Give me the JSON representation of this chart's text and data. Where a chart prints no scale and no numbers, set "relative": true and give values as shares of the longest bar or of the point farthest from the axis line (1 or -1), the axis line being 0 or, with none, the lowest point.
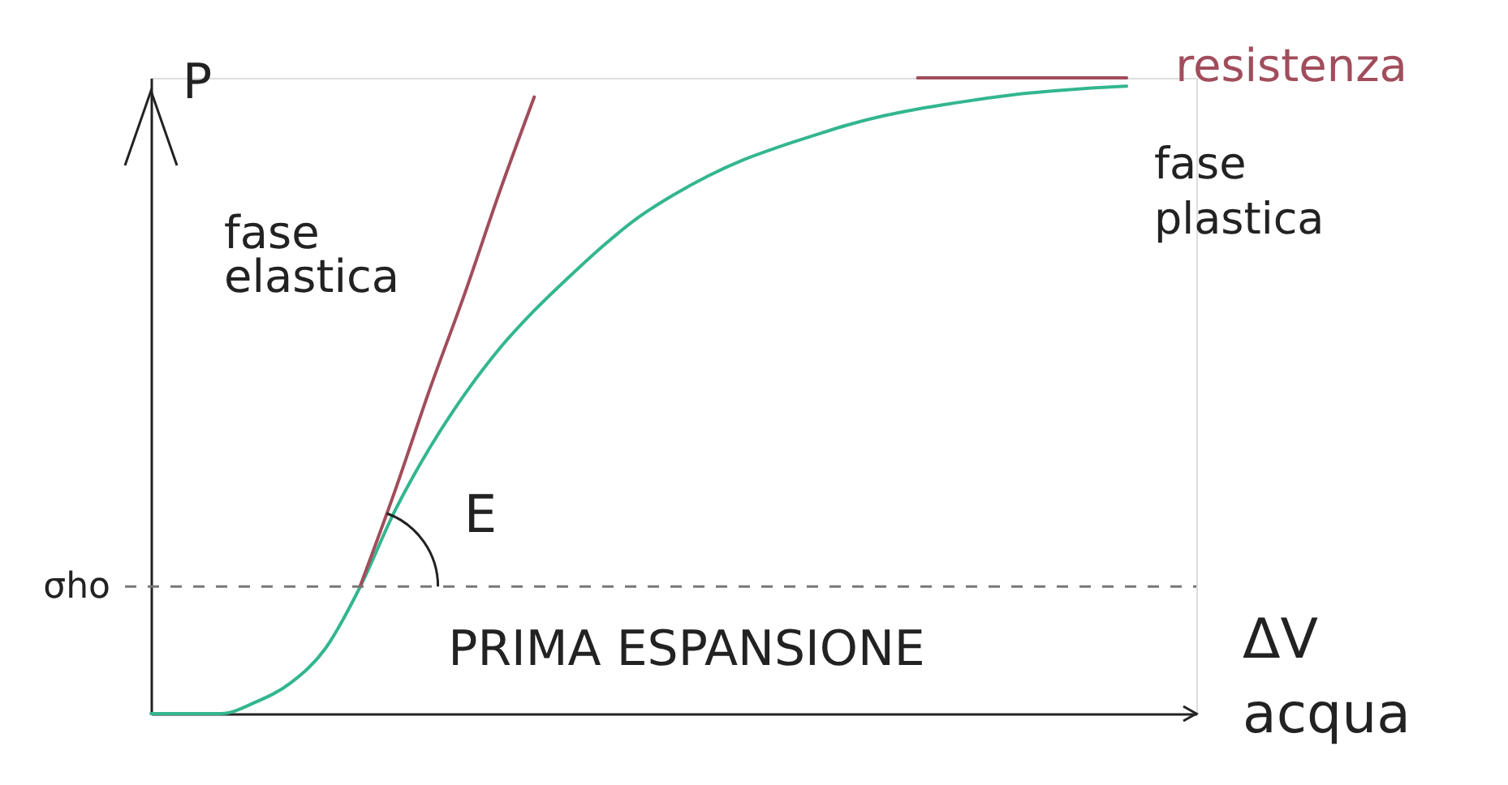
{
  "chart_data": {
    "type": "line",
    "relative": true,
    "xlabel": "ΔV acqua",
    "ylabel": "P",
    "categories": [
      null,
      null,
      null,
      null,
      null,
      null,
      null,
      null,
      null,
      null,
      null,
      null,
      null,
      null,
      null,
      null,
      null,
      null,
      null,
      null,
      null,
      null,
      null,
      null,
      null,
      null,
      null,
      null,
      null,
      null,
      null
    ],
    "series": [
      {
        "color": "#33b68f",
        "values": [
          0,
          0,
          0,
          0.018,
          0.048,
          0.102,
          0.199,
          0.319,
          0.418,
          0.502,
          0.574,
          0.634,
          0.687,
          0.737,
          0.781,
          0.816,
          0.846,
          0.871,
          0.891,
          0.909,
          0.926,
          0.94,
          0.951,
          0.96,
          0.968,
          0.975,
          0.98,
          0.984,
          0.987,
          null,
          null
        ]
      },
      {
        "color": "#a14d5c",
        "values": [
          null,
          null,
          null,
          null,
          null,
          null,
          0.2,
          0.35,
          0.51,
          0.66,
          0.82,
          0.97,
          null,
          null,
          null,
          null,
          null,
          null,
          null,
          null,
          null,
          null,
          null,
          null,
          null,
          null,
          null,
          null,
          null,
          null,
          null
        ]
      },
      {
        "name": "resistenza",
        "color": "#a14d5c",
        "values": [
          null,
          null,
          null,
          null,
          null,
          null,
          null,
          null,
          null,
          null,
          null,
          null,
          null,
          null,
          null,
          null,
          null,
          null,
          null,
          null,
          null,
          null,
          1,
          1,
          1,
          1,
          1,
          1,
          1,
          null,
          null
        ]
      }
    ],
    "ref_lines": [
      {
        "axis": "y",
        "value": 0.2,
        "label": "σho",
        "line_style": "dashed",
        "color": "#777777"
      }
    ],
    "annotations": [
      "fase elastica",
      "fase plastica",
      "E",
      "PRIMA ESPANSIONE"
    ]
  }
}
